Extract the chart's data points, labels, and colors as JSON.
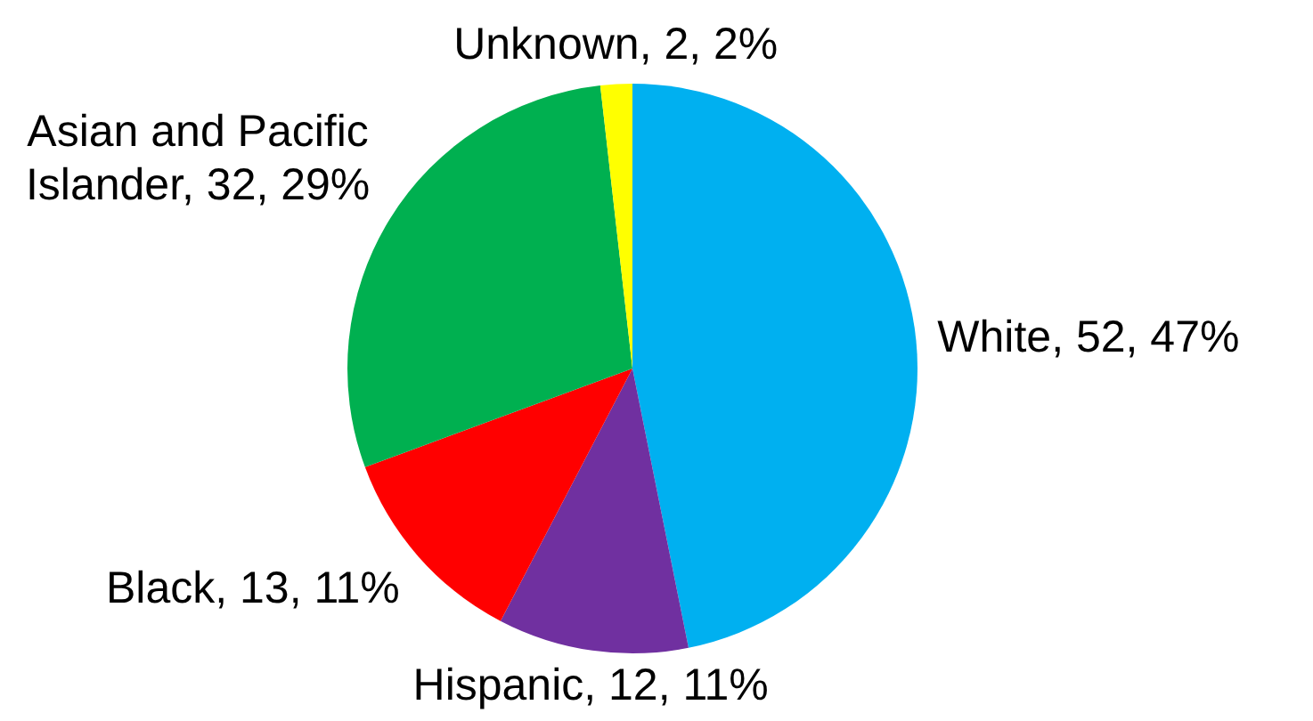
{
  "chart_data": {
    "type": "pie",
    "categories": [
      "White",
      "Hispanic",
      "Black",
      "Asian and Pacific Islander",
      "Unknown"
    ],
    "values": [
      52,
      12,
      13,
      32,
      2
    ],
    "colors": [
      "#00b0f0",
      "#7030a0",
      "#ff0000",
      "#00b050",
      "#ffff00"
    ],
    "value_labels": [
      "52, 47%",
      "12, 11%",
      "13, 11%",
      "32, 29%",
      "2, 2%"
    ]
  }
}
